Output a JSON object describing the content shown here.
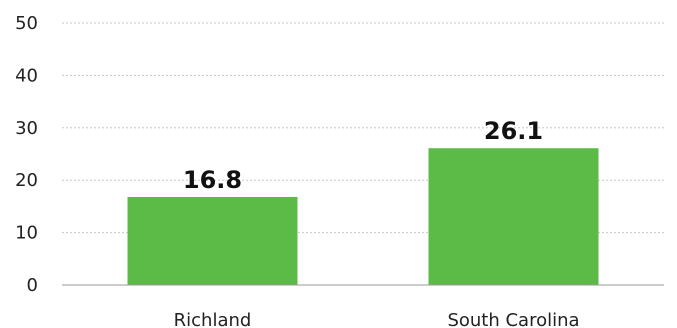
{
  "chart_data": {
    "type": "bar",
    "categories": [
      "Richland",
      "South Carolina"
    ],
    "values": [
      16.8,
      26.1
    ],
    "data_labels": [
      "16.8",
      "26.1"
    ],
    "title": "",
    "xlabel": "",
    "ylabel": "",
    "ylim": [
      0,
      50
    ],
    "yticks": [
      "0",
      "10",
      "20",
      "30",
      "40",
      "50"
    ],
    "ytick_values": [
      0,
      10,
      20,
      30,
      40,
      50
    ],
    "grid": true,
    "bar_color": "#5cba47"
  }
}
